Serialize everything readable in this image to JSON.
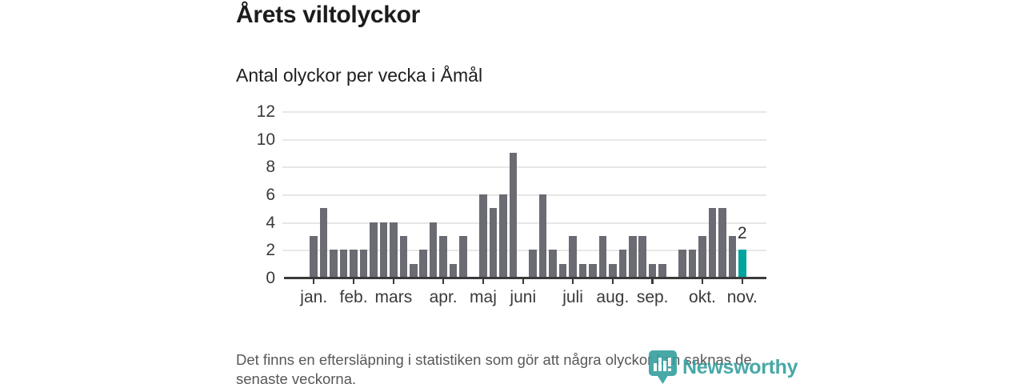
{
  "header": {
    "title": "Årets viltolyckor"
  },
  "chart": {
    "subtitle": "Antal olyckor per vecka i Åmål"
  },
  "chart_data": {
    "type": "bar",
    "title": "Årets viltolyckor",
    "subtitle": "Antal olyckor per vecka i Åmål",
    "ylabel": "",
    "xlabel": "",
    "values": [
      3,
      5,
      2,
      2,
      2,
      2,
      4,
      4,
      4,
      3,
      1,
      2,
      4,
      3,
      1,
      3,
      0,
      6,
      5,
      6,
      9,
      0,
      2,
      6,
      2,
      1,
      3,
      1,
      1,
      3,
      1,
      2,
      3,
      3,
      1,
      1,
      0,
      2,
      2,
      3,
      5,
      5,
      3,
      2
    ],
    "highlight_index": 43,
    "highlight_label": "2",
    "months": [
      {
        "label": "jan.",
        "week": 0
      },
      {
        "label": "feb.",
        "week": 4
      },
      {
        "label": "mars",
        "week": 8
      },
      {
        "label": "apr.",
        "week": 13
      },
      {
        "label": "maj",
        "week": 17
      },
      {
        "label": "juni",
        "week": 21
      },
      {
        "label": "juli",
        "week": 26
      },
      {
        "label": "aug.",
        "week": 30
      },
      {
        "label": "sep.",
        "week": 34
      },
      {
        "label": "okt.",
        "week": 39
      },
      {
        "label": "nov.",
        "week": 43
      }
    ],
    "yticks": [
      0,
      2,
      4,
      6,
      8,
      10,
      12
    ],
    "ylim": [
      0,
      12
    ],
    "grid": true,
    "legend": false,
    "colors": {
      "bar": "#6b6b73",
      "highlight": "#00a49e",
      "axis": "#3a3a3a",
      "gridline": "#e7e7e7"
    }
  },
  "footer": {
    "note": "Det finns en eftersläpning i statistiken som gör att några olyckor kan saknas de senaste veckorna.",
    "logo_text": "Newsworthy"
  }
}
